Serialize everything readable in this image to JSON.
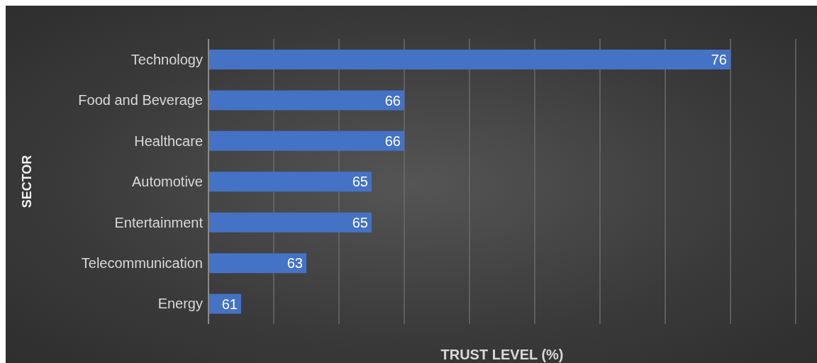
{
  "chart_data": {
    "type": "bar",
    "orientation": "horizontal",
    "xlabel": "TRUST LEVEL (%)",
    "ylabel": "SECTOR",
    "categories": [
      "Technology",
      "Food and Beverage",
      "Healthcare",
      "Automotive",
      "Entertainment",
      "Telecommunication",
      "Energy"
    ],
    "values": [
      76,
      66,
      66,
      65,
      65,
      63,
      61
    ],
    "color": "#4472c4",
    "data_labels": true,
    "xlim": [
      60,
      78
    ],
    "xticks": [
      {
        "value": 60,
        "label": null
      },
      {
        "value": 62,
        "label": null
      },
      {
        "value": 64,
        "label": null
      },
      {
        "value": 66,
        "label": null
      },
      {
        "value": 68,
        "label": null
      },
      {
        "value": 70,
        "label": null
      },
      {
        "value": 72,
        "label": null
      },
      {
        "value": 74,
        "label": null
      },
      {
        "value": 76,
        "label": null
      },
      {
        "value": 78,
        "label": null
      }
    ],
    "grid": "x",
    "tick_labels": "y"
  }
}
